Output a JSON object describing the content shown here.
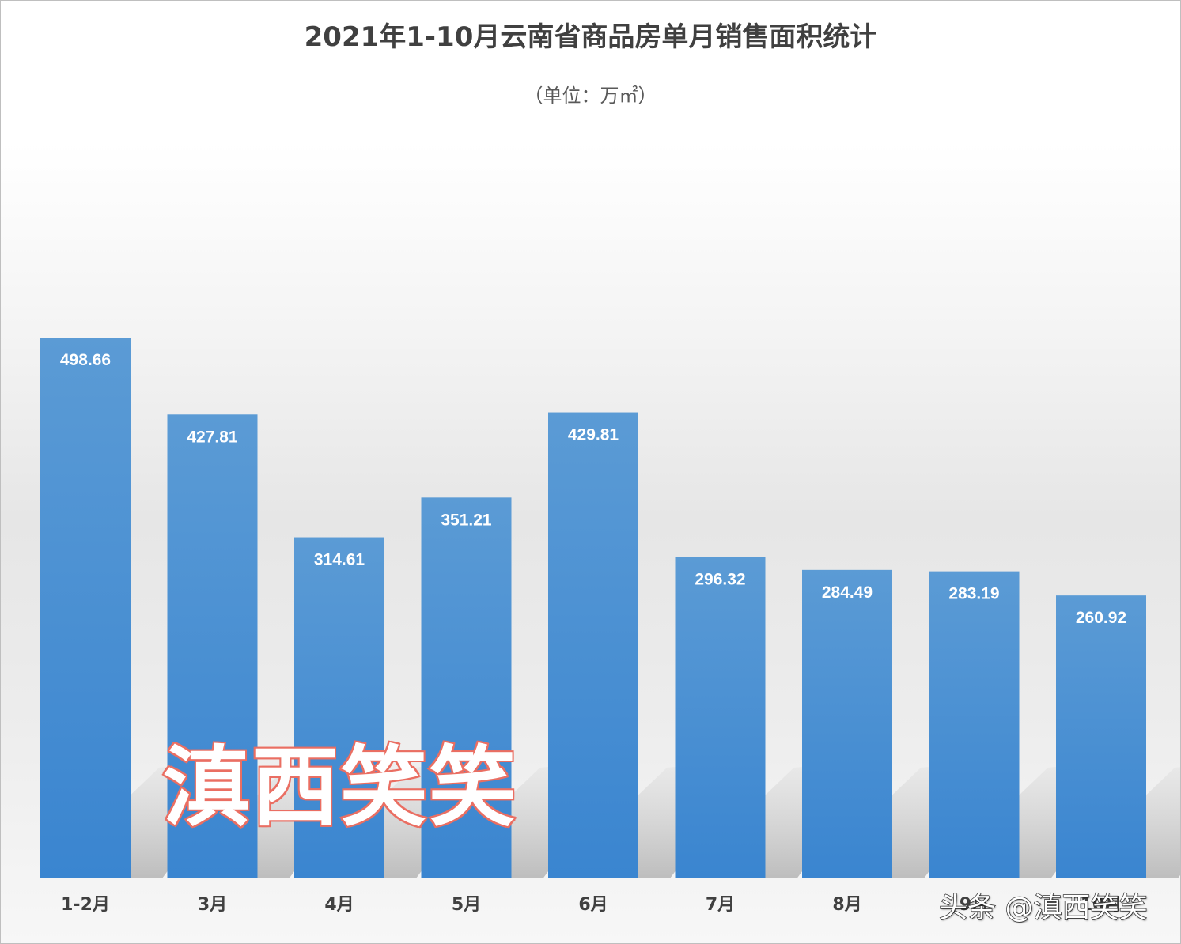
{
  "chart_data": {
    "type": "bar",
    "title": "2021年1-10月云南省商品房单月销售面积统计",
    "subtitle": "（单位：万㎡）",
    "categories": [
      "1-2月",
      "3月",
      "4月",
      "5月",
      "6月",
      "7月",
      "8月",
      "9月",
      "10月"
    ],
    "values": [
      498.66,
      427.81,
      314.61,
      351.21,
      429.81,
      296.32,
      284.49,
      283.19,
      260.92
    ],
    "data_labels": [
      "498.66",
      "427.81",
      "314.61",
      "351.21",
      "429.81",
      "296.32",
      "284.49",
      "283.19",
      "260.92"
    ],
    "ylim": [
      0,
      700
    ],
    "grid": false,
    "legend": "none",
    "colors": {
      "bar_top": "#5b9bd5",
      "bar_bottom": "#3a85d0",
      "label": "#ffffff",
      "category_label": "#404040"
    }
  },
  "watermarks": {
    "center": "滇西笑笑",
    "corner": "头条 @滇西笑笑"
  }
}
